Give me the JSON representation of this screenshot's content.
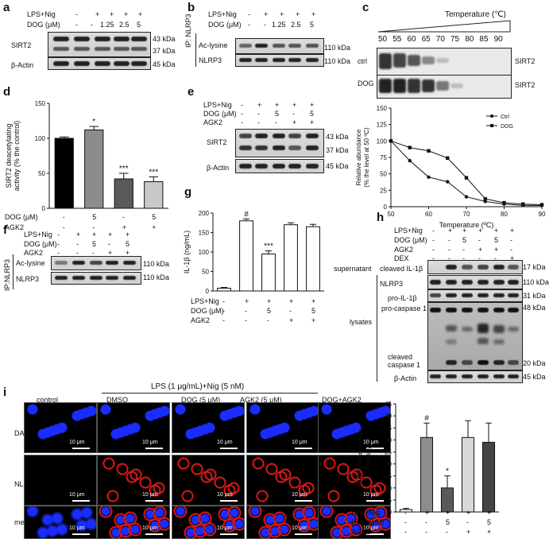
{
  "panel_a": {
    "label": "a",
    "row_labels": [
      "LPS+Nig",
      "DOG (μM)"
    ],
    "lane_values": [
      [
        "-",
        "+",
        "+",
        "+",
        "+"
      ],
      [
        "-",
        "-",
        "1.25",
        "2.5",
        "5"
      ]
    ],
    "blot_labels": [
      "SIRT2",
      "β-Actin"
    ],
    "kda": [
      "43 kDa",
      "37 kDa",
      "45 kDa"
    ]
  },
  "panel_b": {
    "label": "b",
    "ip_label": "IP: NLRP3",
    "row_labels": [
      "LPS+Nig",
      "DOG (μM)"
    ],
    "lane_values": [
      [
        "-",
        "+",
        "+",
        "+",
        "+"
      ],
      [
        "-",
        "-",
        "1.25",
        "2.5",
        "5"
      ]
    ],
    "blot_labels": [
      "Ac-lysine",
      "NLRP3"
    ],
    "kda": [
      "110 kDa",
      "110 kDa"
    ]
  },
  "panel_c": {
    "label": "c",
    "temp_label": "Temperature (℃)",
    "temps": [
      "50",
      "55",
      "60",
      "65",
      "70",
      "75",
      "80",
      "85",
      "90"
    ],
    "row_labels": [
      "ctrl",
      "DOG"
    ],
    "blot_labels": [
      "SIRT2",
      "SIRT2"
    ]
  },
  "panel_d": {
    "label": "d",
    "rows": [
      {
        "name": "DOG (μM)",
        "values": [
          "-",
          "5",
          "-",
          "5"
        ]
      },
      {
        "name": "AGK2",
        "values": [
          "-",
          "-",
          "+",
          "+"
        ]
      }
    ],
    "significance": [
      "",
      "*",
      "***",
      "***"
    ]
  },
  "panel_e": {
    "label": "e",
    "row_labels": [
      "LPS+Nig",
      "DOG (μM)",
      "AGK2"
    ],
    "lane_values": [
      [
        "-",
        "+",
        "+",
        "+",
        "+"
      ],
      [
        "-",
        "-",
        "5",
        "-",
        "5"
      ],
      [
        "-",
        "-",
        "-",
        "+",
        "+"
      ]
    ],
    "blot_labels": [
      "SIRT2",
      "β-Actin"
    ],
    "kda": [
      "43 kDa",
      "37 kDa",
      "45 kDa"
    ]
  },
  "panel_f": {
    "label": "f",
    "ip_label": "IP:NLRP3",
    "row_labels": [
      "LPS+Nig",
      "DOG (μM)",
      "AGK2"
    ],
    "lane_values": [
      [
        "-",
        "+",
        "+",
        "+",
        "+"
      ],
      [
        "-",
        "-",
        "5",
        "-",
        "5"
      ],
      [
        "-",
        "-",
        "-",
        "+",
        "+"
      ]
    ],
    "blot_labels": [
      "Ac-lysine",
      "NLRP3"
    ],
    "kda": [
      "110 kDa",
      "110 kDa"
    ]
  },
  "panel_g": {
    "label": "g",
    "rows": [
      {
        "name": "LPS+Nig",
        "values": [
          "-",
          "+",
          "+",
          "+",
          "+"
        ]
      },
      {
        "name": "DOG (μM)",
        "values": [
          "-",
          "-",
          "5",
          "-",
          "5"
        ]
      },
      {
        "name": "AGK2",
        "values": [
          "-",
          "-",
          "-",
          "+",
          "+"
        ]
      }
    ],
    "significance": [
      "",
      "#",
      "***",
      "",
      ""
    ]
  },
  "panel_h": {
    "label": "h",
    "row_labels": [
      "LPS+Nig",
      "DOG (μM)",
      "AGK2",
      "DEX"
    ],
    "lane_values": [
      [
        "-",
        "+",
        "+",
        "+",
        "+",
        "+"
      ],
      [
        "-",
        "-",
        "5",
        "-",
        "5",
        "-"
      ],
      [
        "-",
        "-",
        "-",
        "+",
        "+",
        "-"
      ],
      [
        "-",
        "-",
        "-",
        "-",
        "-",
        "+"
      ]
    ],
    "section_labels": [
      "supernatant",
      "lysates"
    ],
    "blot_labels": [
      "cleaved IL-1β",
      "NLRP3",
      "pro-IL-1β",
      "pro-caspase 1",
      "cleaved caspase 1",
      "β-Actin"
    ],
    "kda": [
      "17 kDa",
      "110 kDa",
      "31 kDa",
      "48 kDa",
      "20 kDa",
      "45 kDa"
    ]
  },
  "panel_i": {
    "label": "i",
    "treatment_header": "LPS (1 μg/mL)+Nig (5 nM)",
    "columns": [
      "control",
      "DMSO",
      "DOG (5 μM)",
      "AGK2 (5 μM)",
      "DOG+AGK2"
    ],
    "rows": [
      "DAPI",
      "NLRP3",
      "merge"
    ],
    "scale_bar": "10 μm",
    "colors": {
      "dapi": "#1a2cff",
      "nlrp3": "#e01818"
    }
  },
  "panel_i_chart": {
    "rows": [
      {
        "name": "LPS+Nig",
        "values": [
          "-",
          "+",
          "+",
          "+",
          "+"
        ]
      },
      {
        "name": "DOG (μM)",
        "values": [
          "-",
          "-",
          "5",
          "-",
          "5"
        ]
      },
      {
        "name": "AGK2",
        "values": [
          "-",
          "-",
          "-",
          "+",
          "+"
        ]
      }
    ],
    "significance": [
      "",
      "#",
      "*",
      "",
      ""
    ]
  },
  "chart_data": [
    {
      "id": "c",
      "type": "line",
      "x": [
        50,
        55,
        60,
        65,
        70,
        75,
        80,
        85,
        90
      ],
      "series": [
        {
          "name": "Ctrl",
          "values": [
            100,
            70,
            45,
            38,
            15,
            8,
            4,
            2,
            2
          ]
        },
        {
          "name": "DOG",
          "values": [
            100,
            90,
            85,
            74,
            44,
            12,
            6,
            4,
            3
          ]
        }
      ],
      "xlabel": "Temperature (ºC)",
      "ylabel": "Relative abundance\n(% the level at 50 ºC)",
      "xticks": [
        "50",
        "60",
        "70",
        "80",
        "90"
      ],
      "yticks": [
        "0",
        "25",
        "50",
        "75",
        "100",
        "125",
        "150"
      ],
      "xlim": [
        50,
        90
      ],
      "ylim": [
        0,
        150
      ]
    },
    {
      "id": "d",
      "type": "bar",
      "values": [
        100,
        112,
        42,
        38
      ],
      "errors": [
        2,
        5,
        8,
        7
      ],
      "colors": [
        "#000000",
        "#8c8c8c",
        "#5a5a5a",
        "#c8c8c8"
      ],
      "ylabel": "SIRT2 deacetylating\nactivity (% the control)",
      "yticks": [
        "0",
        "50",
        "100",
        "150"
      ],
      "ylim": [
        0,
        150
      ]
    },
    {
      "id": "g",
      "type": "bar",
      "values": [
        7,
        180,
        95,
        170,
        165
      ],
      "errors": [
        2,
        5,
        8,
        5,
        6
      ],
      "colors": [
        "#ffffff",
        "#ffffff",
        "#ffffff",
        "#ffffff",
        "#ffffff"
      ],
      "ylabel": "IL-1β (ng/mL)",
      "yticks": [
        "0",
        "50",
        "100",
        "150",
        "200"
      ],
      "ylim": [
        0,
        200
      ]
    },
    {
      "id": "i",
      "type": "bar",
      "values": [
        1,
        31,
        10,
        31,
        29
      ],
      "errors": [
        0.5,
        6,
        5,
        7,
        8
      ],
      "colors": [
        "#ffffff",
        "#8c8c8c",
        "#5a5a5a",
        "#d8d8d8",
        "#444444"
      ],
      "ylabel": "NLRP3 fluorescence\nintensity",
      "yticks": [
        "0",
        "5",
        "10",
        "15",
        "20",
        "25",
        "30",
        "35",
        "40",
        "45"
      ],
      "ylim": [
        0,
        45
      ]
    }
  ]
}
